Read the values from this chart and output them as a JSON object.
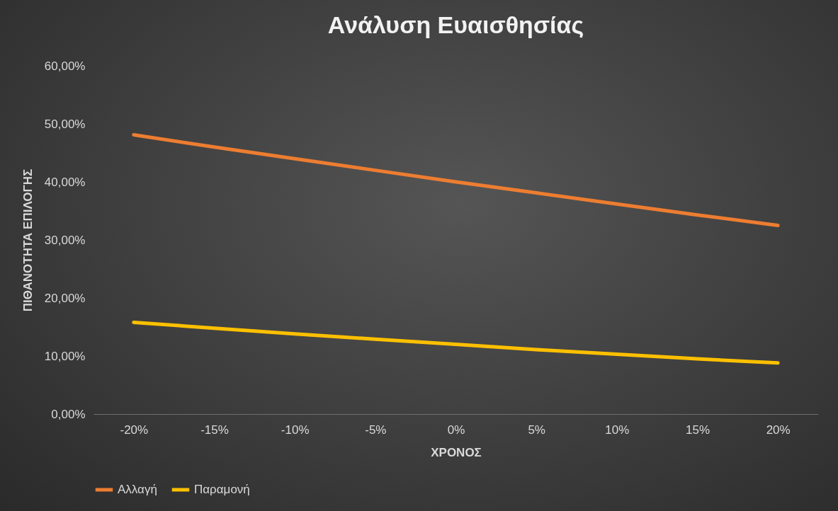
{
  "chart_data": {
    "type": "line",
    "title": "Ανάλυση Ευαισθησίας",
    "xlabel": "ΧΡΟΝΟΣ",
    "ylabel": "ΠΙΘΑΝΟΤΗΤΑ ΕΠΙΛΟΓΗΣ",
    "categories": [
      "-20%",
      "-15%",
      "-10%",
      "-5%",
      "0%",
      "5%",
      "10%",
      "15%",
      "20%"
    ],
    "series": [
      {
        "name": "Αλλαγή",
        "color": "#ed7d31",
        "values": [
          48.1,
          46.0,
          44.0,
          42.0,
          40.0,
          38.1,
          36.2,
          34.3,
          32.5
        ]
      },
      {
        "name": "Παραμονή",
        "color": "#ffc000",
        "values": [
          15.8,
          14.8,
          13.8,
          12.9,
          12.0,
          11.1,
          10.3,
          9.5,
          8.8
        ]
      }
    ],
    "ylim": [
      0,
      60
    ],
    "yticks": [
      {
        "value": 0,
        "label": "0,00%"
      },
      {
        "value": 10,
        "label": "10,00%"
      },
      {
        "value": 20,
        "label": "20,00%"
      },
      {
        "value": 30,
        "label": "30,00%"
      },
      {
        "value": 40,
        "label": "40,00%"
      },
      {
        "value": 50,
        "label": "50,00%"
      },
      {
        "value": 60,
        "label": "60,00%"
      }
    ],
    "legend": "bottom",
    "marker": "none",
    "line_style": "solid"
  }
}
